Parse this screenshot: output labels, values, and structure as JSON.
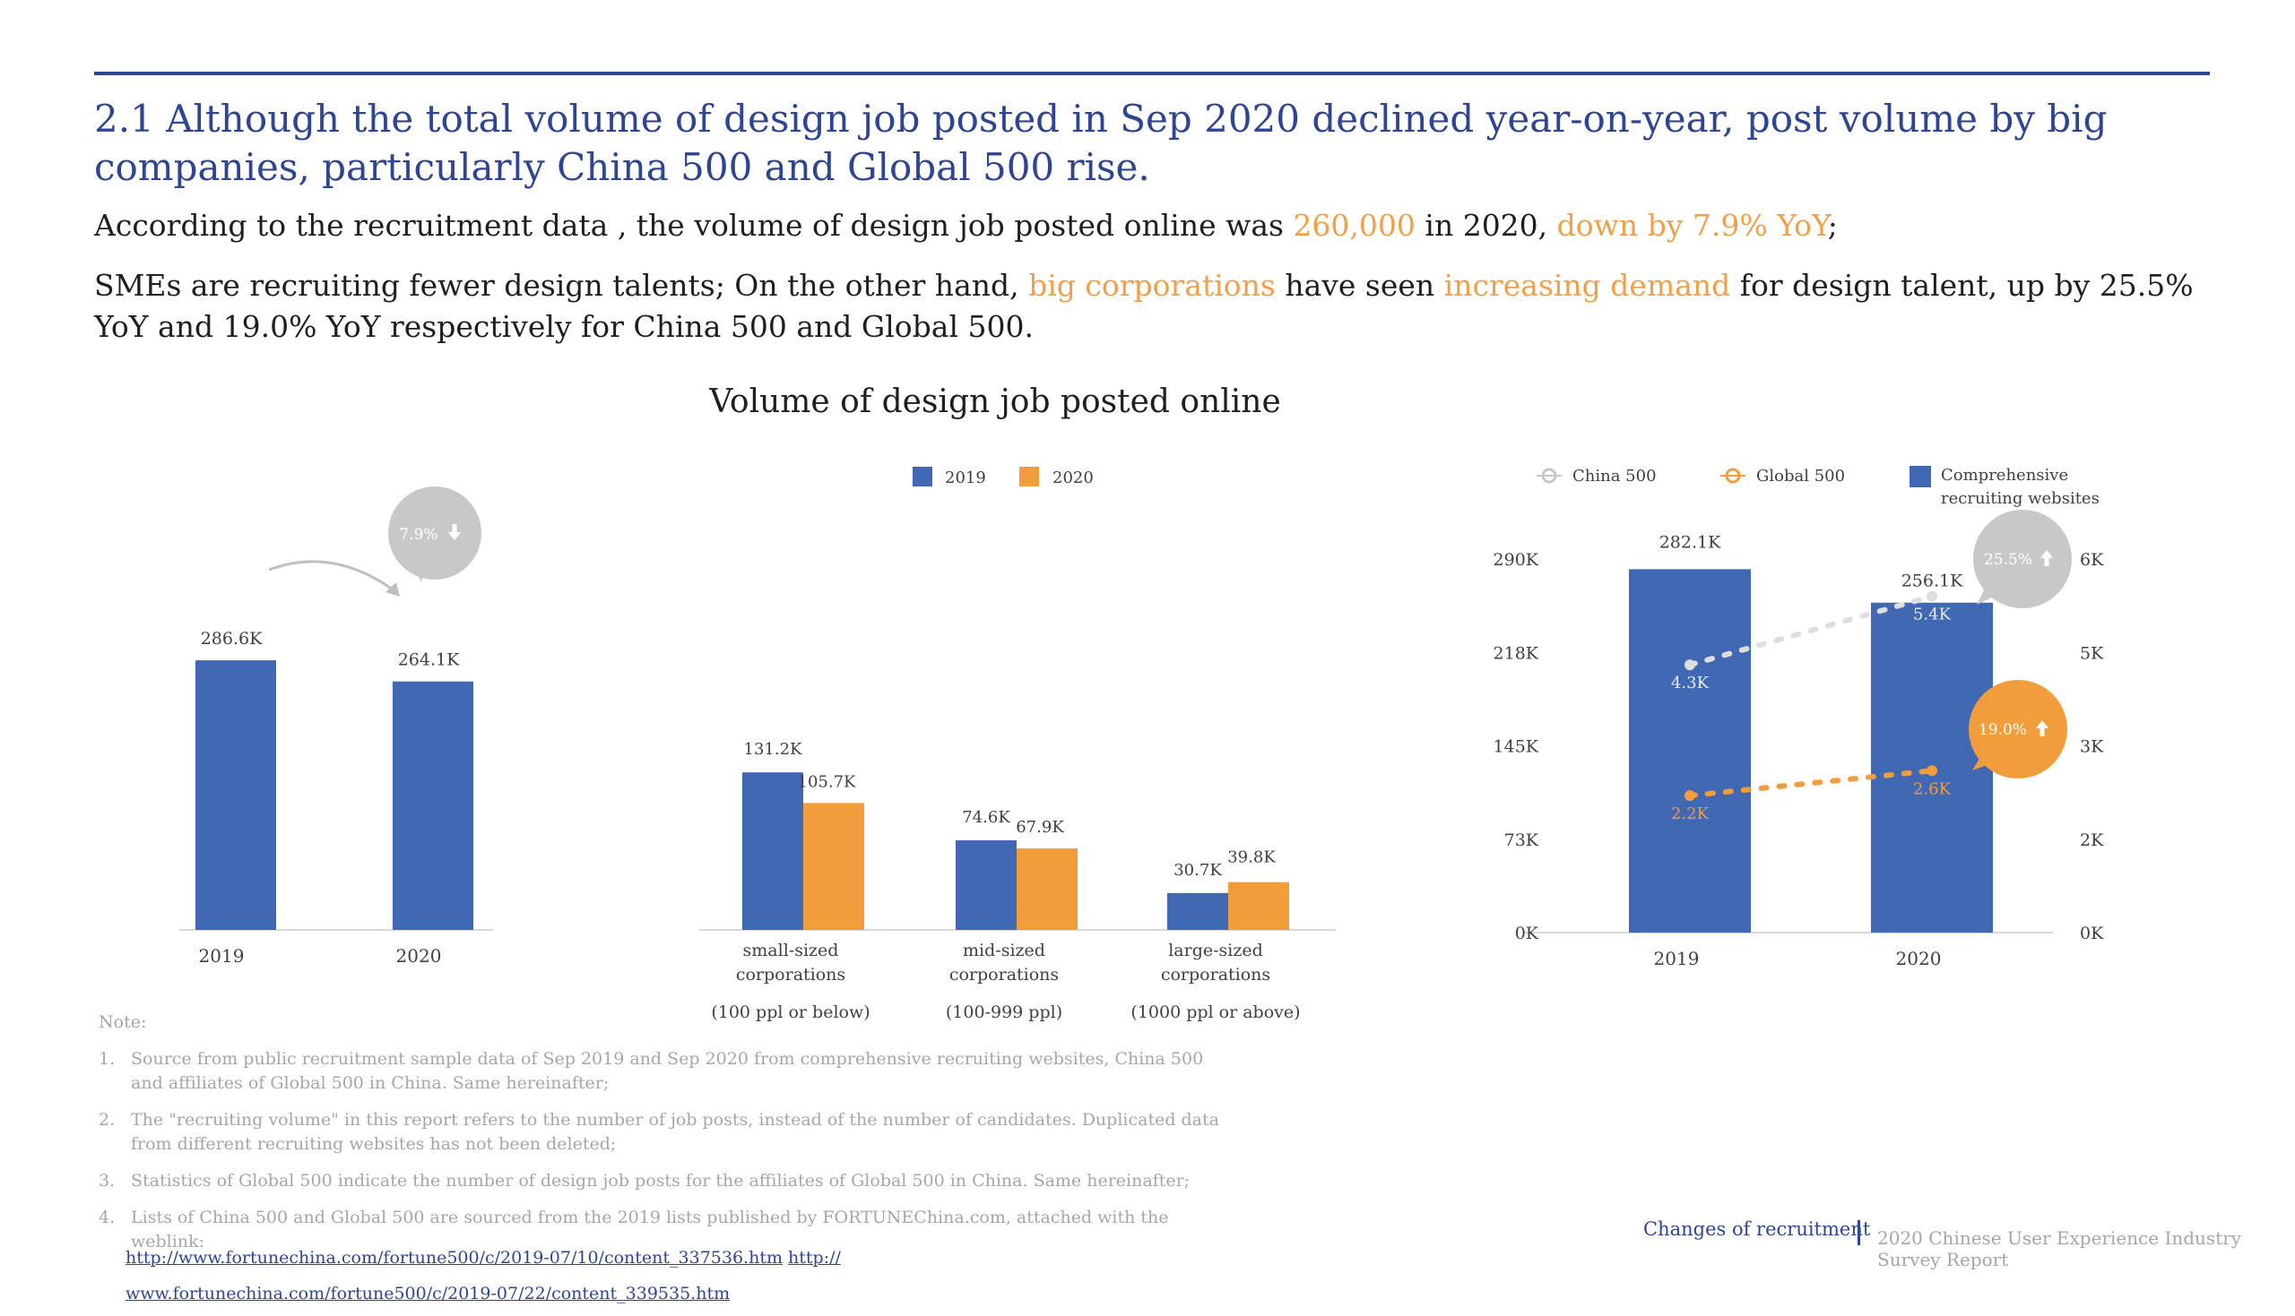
{
  "header": {
    "title": "2.1 Although the total volume of design job posted in Sep 2020 declined year-on-year, post volume by big companies, particularly China 500 and Global 500 rise.",
    "para1": {
      "t1": "According to the recruitment data , the volume of design job posted online was ",
      "h1": "260,000",
      "t2": " in 2020, ",
      "h2": "down by 7.9% YoY",
      "t3": ";"
    },
    "para2": {
      "t1": "SMEs are recruiting fewer design talents; On the other hand, ",
      "h1": "big corporations",
      "t2": " have seen ",
      "h2": "increasing demand",
      "t3": " for design talent, up by 25.5% YoY and 19.0% YoY respectively for China 500 and Global 500."
    }
  },
  "chart_title": "Volume of design job posted online",
  "colors": {
    "blue": "#4169b3",
    "orange": "#f29d3c",
    "gray": "#c8c8c8",
    "navy": "#2e4593"
  },
  "chart_data": [
    {
      "type": "bar",
      "categories": [
        "2019",
        "2020"
      ],
      "values": [
        286.6,
        264.1
      ],
      "value_labels": [
        "286.6K",
        "264.1K"
      ],
      "annotation": {
        "text": "7.9%",
        "direction": "down"
      }
    },
    {
      "type": "bar",
      "legend": [
        "2019",
        "2020"
      ],
      "categories": [
        {
          "line1": "small-sized",
          "line2": "corporations",
          "line3": "(100 ppl or below)"
        },
        {
          "line1": "mid-sized",
          "line2": "corporations",
          "line3": "(100-999 ppl)"
        },
        {
          "line1": "large-sized",
          "line2": "corporations",
          "line3": "(1000 ppl or above)"
        }
      ],
      "series": [
        {
          "name": "2019",
          "values": [
            131.2,
            74.6,
            30.7
          ],
          "labels": [
            "131.2K",
            "74.6K",
            "30.7K"
          ]
        },
        {
          "name": "2020",
          "values": [
            105.7,
            67.9,
            39.8
          ],
          "labels": [
            "105.7K",
            "67.9K",
            "39.8K"
          ]
        }
      ]
    },
    {
      "type": "bar+line",
      "legend": {
        "china": "China 500",
        "global": "Global 500",
        "comp1": "Comprehensive",
        "comp2": "recruiting websites"
      },
      "categories": [
        "2019",
        "2020"
      ],
      "left_axis": {
        "ticks": [
          "0K",
          "73K",
          "145K",
          "218K",
          "290K"
        ],
        "ylim": [
          0,
          290
        ]
      },
      "right_axis": {
        "ticks": [
          "0K",
          "2K",
          "3K",
          "5K",
          "6K"
        ],
        "ylim": [
          0,
          6
        ]
      },
      "bars": {
        "name": "Comprehensive recruiting websites",
        "values": [
          282.1,
          256.1
        ],
        "labels": [
          "282.1K",
          "256.1K"
        ]
      },
      "lines": [
        {
          "name": "China 500",
          "values": [
            4.3,
            5.4
          ],
          "labels": [
            "4.3K",
            "5.4K"
          ],
          "growth": "25.5%"
        },
        {
          "name": "Global 500",
          "values": [
            2.2,
            2.6
          ],
          "labels": [
            "2.2K",
            "2.6K"
          ],
          "growth": "19.0%"
        }
      ]
    }
  ],
  "notes": {
    "heading": "Note:",
    "items": [
      {
        "num": "1.",
        "text": "Source from public recruitment sample data of Sep 2019 and Sep 2020 from comprehensive recruiting websites, China 500 and affiliates of Global 500 in China. Same hereinafter;"
      },
      {
        "num": "2.",
        "text": "The \"recruiting volume\" in this report refers to the number of job posts, instead of the number of candidates. Duplicated data from different recruiting websites has not been deleted;"
      },
      {
        "num": "3.",
        "text": "Statistics of Global 500 indicate the number of design job posts for the affiliates of Global 500 in China. Same hereinafter;"
      },
      {
        "num": "4.",
        "text": "Lists of China 500 and Global 500 are sourced from the 2019 lists published by FORTUNEChina.com, attached with the weblink:"
      }
    ],
    "link1a": "http://www.fortunechina.com/fortune500/c/2019-07/10/content_337536.htm",
    "link1b": "http://",
    "link2": "www.fortunechina.com/fortune500/c/2019-07/22/content_339535.htm"
  },
  "footer": {
    "section": "Changes of recruitment",
    "report": "2020 Chinese User Experience Industry Survey Report"
  }
}
